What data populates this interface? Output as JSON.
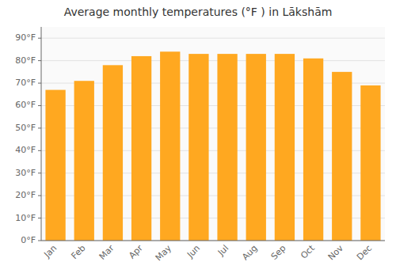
{
  "chart_data": {
    "type": "bar",
    "title": "Average monthly temperatures (°F ) in Lākshām",
    "categories": [
      "Jan",
      "Feb",
      "Mar",
      "Apr",
      "May",
      "Jun",
      "Jul",
      "Aug",
      "Sep",
      "Oct",
      "Nov",
      "Dec"
    ],
    "values": [
      67,
      71,
      78,
      82,
      84,
      83,
      83,
      83,
      83,
      81,
      75,
      69
    ],
    "color": "#FFA820",
    "ylim": [
      0,
      95
    ],
    "yticks": [
      {
        "value": 0,
        "label": "0°F"
      },
      {
        "value": 10,
        "label": "10°F"
      },
      {
        "value": 20,
        "label": "20°F"
      },
      {
        "value": 30,
        "label": "30°F"
      },
      {
        "value": 40,
        "label": "40°F"
      },
      {
        "value": 50,
        "label": "50°F"
      },
      {
        "value": 60,
        "label": "60°F"
      },
      {
        "value": 70,
        "label": "70°F"
      },
      {
        "value": 80,
        "label": "80°F"
      },
      {
        "value": 90,
        "label": "90°F"
      }
    ],
    "grid": true
  }
}
